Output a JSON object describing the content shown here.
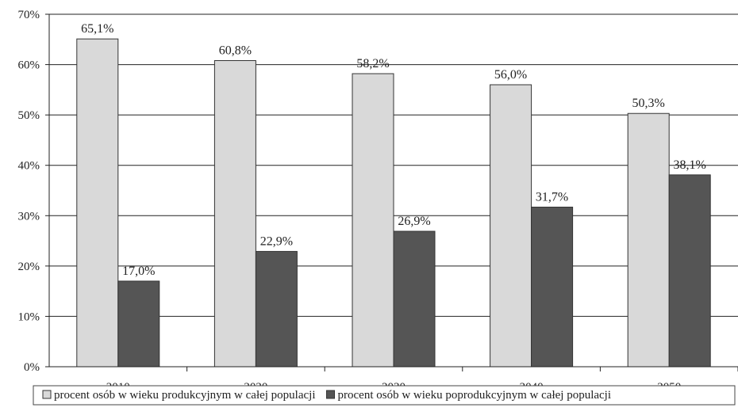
{
  "chart_data": {
    "type": "bar",
    "title": "",
    "xlabel": "",
    "ylabel": "",
    "categories": [
      "2010",
      "2020",
      "2030",
      "2040",
      "2050"
    ],
    "ylim": [
      0,
      70
    ],
    "yticks": [
      0,
      10,
      20,
      30,
      40,
      50,
      60,
      70
    ],
    "ytick_labels": [
      "0%",
      "10%",
      "20%",
      "30%",
      "40%",
      "50%",
      "60%",
      "70%"
    ],
    "grid": true,
    "legend_position": "bottom",
    "series": [
      {
        "name": "procent osób w wieku produkcyjnym w całej populacji",
        "values": [
          65.1,
          60.8,
          58.2,
          56.0,
          50.3
        ],
        "labels": [
          "65,1%",
          "60,8%",
          "58,2%",
          "56,0%",
          "50,3%"
        ],
        "color": "#d9d9d9"
      },
      {
        "name": "procent osób w wieku poprodukcyjnym w całej populacji",
        "values": [
          17.0,
          22.9,
          26.9,
          31.7,
          38.1
        ],
        "labels": [
          "17,0%",
          "22,9%",
          "26,9%",
          "31,7%",
          "38,1%"
        ],
        "color": "#555555"
      }
    ]
  }
}
